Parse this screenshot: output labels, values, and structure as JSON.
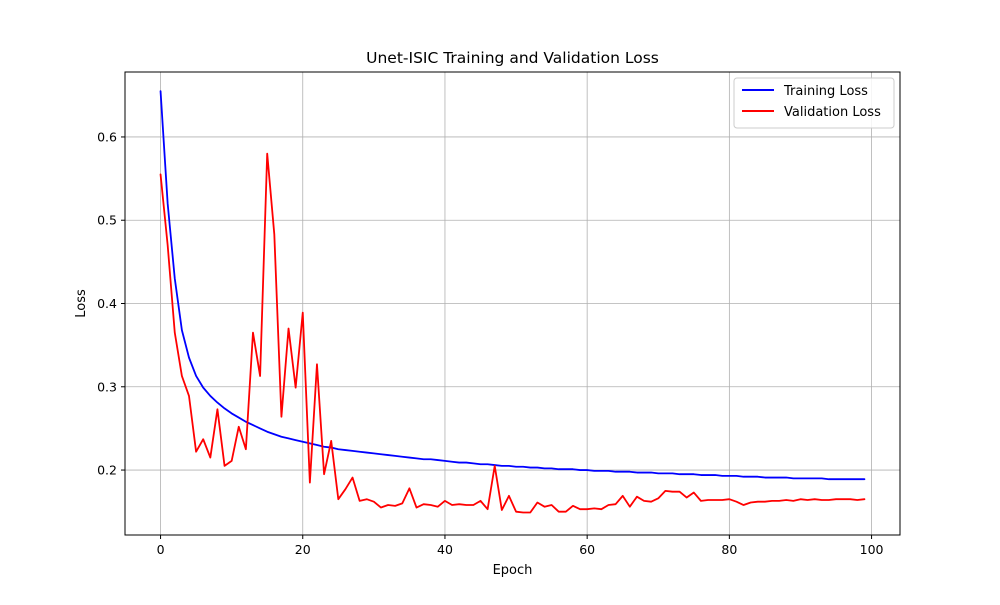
{
  "chart_data": {
    "type": "line",
    "title": "Unet-ISIC Training and Validation Loss",
    "xlabel": "Epoch",
    "ylabel": "Loss",
    "xlim": [
      -5,
      104
    ],
    "ylim": [
      0.122,
      0.678
    ],
    "xticks": [
      0,
      20,
      40,
      60,
      80,
      100
    ],
    "yticks": [
      0.2,
      0.3,
      0.4,
      0.5,
      0.6
    ],
    "xtick_labels": [
      "0",
      "20",
      "40",
      "60",
      "80",
      "100"
    ],
    "ytick_labels": [
      "0.2",
      "0.3",
      "0.4",
      "0.5",
      "0.6"
    ],
    "grid": true,
    "legend_position": "top-right",
    "x": [
      0,
      1,
      2,
      3,
      4,
      5,
      6,
      7,
      8,
      9,
      10,
      11,
      12,
      13,
      14,
      15,
      16,
      17,
      18,
      19,
      20,
      21,
      22,
      23,
      24,
      25,
      26,
      27,
      28,
      29,
      30,
      31,
      32,
      33,
      34,
      35,
      36,
      37,
      38,
      39,
      40,
      41,
      42,
      43,
      44,
      45,
      46,
      47,
      48,
      49,
      50,
      51,
      52,
      53,
      54,
      55,
      56,
      57,
      58,
      59,
      60,
      61,
      62,
      63,
      64,
      65,
      66,
      67,
      68,
      69,
      70,
      71,
      72,
      73,
      74,
      75,
      76,
      77,
      78,
      79,
      80,
      81,
      82,
      83,
      84,
      85,
      86,
      87,
      88,
      89,
      90,
      91,
      92,
      93,
      94,
      95,
      96,
      97,
      98,
      99
    ],
    "series": [
      {
        "name": "Training Loss",
        "color": "#0000ff",
        "values": [
          0.655,
          0.52,
          0.43,
          0.368,
          0.335,
          0.313,
          0.299,
          0.289,
          0.281,
          0.274,
          0.268,
          0.263,
          0.258,
          0.254,
          0.25,
          0.246,
          0.243,
          0.24,
          0.238,
          0.236,
          0.234,
          0.232,
          0.23,
          0.228,
          0.227,
          0.225,
          0.224,
          0.223,
          0.222,
          0.221,
          0.22,
          0.219,
          0.218,
          0.217,
          0.216,
          0.215,
          0.214,
          0.213,
          0.213,
          0.212,
          0.211,
          0.21,
          0.209,
          0.209,
          0.208,
          0.207,
          0.207,
          0.206,
          0.205,
          0.205,
          0.204,
          0.204,
          0.203,
          0.203,
          0.202,
          0.202,
          0.201,
          0.201,
          0.201,
          0.2,
          0.2,
          0.199,
          0.199,
          0.199,
          0.198,
          0.198,
          0.198,
          0.197,
          0.197,
          0.197,
          0.196,
          0.196,
          0.196,
          0.195,
          0.195,
          0.195,
          0.194,
          0.194,
          0.194,
          0.193,
          0.193,
          0.193,
          0.192,
          0.192,
          0.192,
          0.191,
          0.191,
          0.191,
          0.191,
          0.19,
          0.19,
          0.19,
          0.19,
          0.19,
          0.189,
          0.189,
          0.189,
          0.189,
          0.189,
          0.189
        ]
      },
      {
        "name": "Validation Loss",
        "color": "#ff0000",
        "values": [
          0.555,
          0.47,
          0.365,
          0.313,
          0.289,
          0.222,
          0.237,
          0.215,
          0.273,
          0.205,
          0.211,
          0.252,
          0.225,
          0.365,
          0.313,
          0.58,
          0.483,
          0.264,
          0.37,
          0.299,
          0.389,
          0.185,
          0.327,
          0.195,
          0.235,
          0.165,
          0.177,
          0.191,
          0.163,
          0.165,
          0.162,
          0.155,
          0.158,
          0.157,
          0.16,
          0.178,
          0.155,
          0.159,
          0.158,
          0.156,
          0.163,
          0.158,
          0.159,
          0.158,
          0.158,
          0.163,
          0.153,
          0.205,
          0.152,
          0.169,
          0.15,
          0.149,
          0.149,
          0.161,
          0.156,
          0.158,
          0.15,
          0.15,
          0.157,
          0.153,
          0.153,
          0.154,
          0.153,
          0.158,
          0.159,
          0.169,
          0.156,
          0.168,
          0.163,
          0.162,
          0.166,
          0.175,
          0.174,
          0.174,
          0.167,
          0.173,
          0.163,
          0.164,
          0.164,
          0.164,
          0.165,
          0.162,
          0.158,
          0.161,
          0.162,
          0.162,
          0.163,
          0.163,
          0.164,
          0.163,
          0.165,
          0.164,
          0.165,
          0.164,
          0.164,
          0.165,
          0.165,
          0.165,
          0.164,
          0.165
        ]
      }
    ]
  }
}
